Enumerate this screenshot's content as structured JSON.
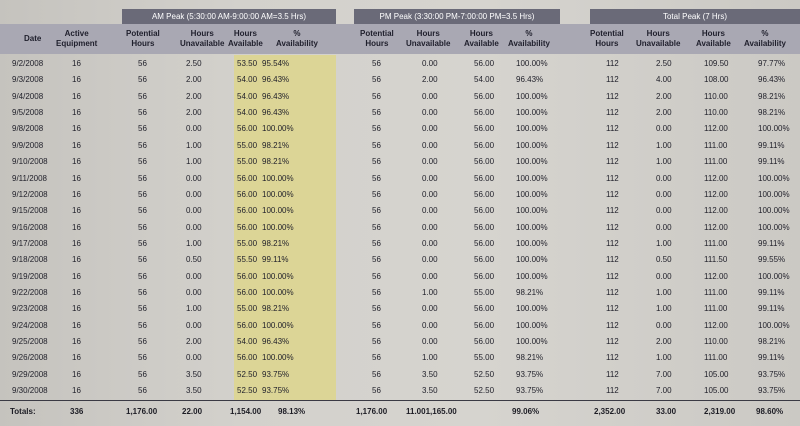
{
  "groups": {
    "am": "AM Peak (5:30:00 AM-9:00:00 AM=3.5 Hrs)",
    "pm": "PM Peak (3:30:00 PM-7:00:00 PM=3.5 Hrs)",
    "total": "Total Peak (7 Hrs)"
  },
  "headers": {
    "date": "Date",
    "active_equipment": "Active\nEquipment",
    "am_potential": "Potential\nHours",
    "am_unavailable": "Hours\nUnavailable",
    "am_available": "Hours\nAvailable",
    "am_pct": "%\nAvailability",
    "pm_potential": "Potential\nHours",
    "pm_unavailable": "Hours\nUnavailable",
    "pm_available": "Hours\nAvailable",
    "pm_pct": "%\nAvailability",
    "tot_potential": "Potential\nHours",
    "tot_unavailable": "Hours\nUnavailable",
    "tot_available": "Hours\nAvailable",
    "tot_pct": "%\nAvailability"
  },
  "rows": [
    {
      "date": "9/2/2008",
      "eq": "16",
      "am_pot": "56",
      "am_un": "2.50",
      "am_av": "53.50",
      "am_pct": "95.54%",
      "pm_pot": "56",
      "pm_un": "0.00",
      "pm_av": "56.00",
      "pm_pct": "100.00%",
      "t_pot": "112",
      "t_un": "2.50",
      "t_av": "109.50",
      "t_pct": "97.77%"
    },
    {
      "date": "9/3/2008",
      "eq": "16",
      "am_pot": "56",
      "am_un": "2.00",
      "am_av": "54.00",
      "am_pct": "96.43%",
      "pm_pot": "56",
      "pm_un": "2.00",
      "pm_av": "54.00",
      "pm_pct": "96.43%",
      "t_pot": "112",
      "t_un": "4.00",
      "t_av": "108.00",
      "t_pct": "96.43%"
    },
    {
      "date": "9/4/2008",
      "eq": "16",
      "am_pot": "56",
      "am_un": "2.00",
      "am_av": "54.00",
      "am_pct": "96.43%",
      "pm_pot": "56",
      "pm_un": "0.00",
      "pm_av": "56.00",
      "pm_pct": "100.00%",
      "t_pot": "112",
      "t_un": "2.00",
      "t_av": "110.00",
      "t_pct": "98.21%"
    },
    {
      "date": "9/5/2008",
      "eq": "16",
      "am_pot": "56",
      "am_un": "2.00",
      "am_av": "54.00",
      "am_pct": "96.43%",
      "pm_pot": "56",
      "pm_un": "0.00",
      "pm_av": "56.00",
      "pm_pct": "100.00%",
      "t_pot": "112",
      "t_un": "2.00",
      "t_av": "110.00",
      "t_pct": "98.21%"
    },
    {
      "date": "9/8/2008",
      "eq": "16",
      "am_pot": "56",
      "am_un": "0.00",
      "am_av": "56.00",
      "am_pct": "100.00%",
      "pm_pot": "56",
      "pm_un": "0.00",
      "pm_av": "56.00",
      "pm_pct": "100.00%",
      "t_pot": "112",
      "t_un": "0.00",
      "t_av": "112.00",
      "t_pct": "100.00%"
    },
    {
      "date": "9/9/2008",
      "eq": "16",
      "am_pot": "56",
      "am_un": "1.00",
      "am_av": "55.00",
      "am_pct": "98.21%",
      "pm_pot": "56",
      "pm_un": "0.00",
      "pm_av": "56.00",
      "pm_pct": "100.00%",
      "t_pot": "112",
      "t_un": "1.00",
      "t_av": "111.00",
      "t_pct": "99.11%"
    },
    {
      "date": "9/10/2008",
      "eq": "16",
      "am_pot": "56",
      "am_un": "1.00",
      "am_av": "55.00",
      "am_pct": "98.21%",
      "pm_pot": "56",
      "pm_un": "0.00",
      "pm_av": "56.00",
      "pm_pct": "100.00%",
      "t_pot": "112",
      "t_un": "1.00",
      "t_av": "111.00",
      "t_pct": "99.11%"
    },
    {
      "date": "9/11/2008",
      "eq": "16",
      "am_pot": "56",
      "am_un": "0.00",
      "am_av": "56.00",
      "am_pct": "100.00%",
      "pm_pot": "56",
      "pm_un": "0.00",
      "pm_av": "56.00",
      "pm_pct": "100.00%",
      "t_pot": "112",
      "t_un": "0.00",
      "t_av": "112.00",
      "t_pct": "100.00%"
    },
    {
      "date": "9/12/2008",
      "eq": "16",
      "am_pot": "56",
      "am_un": "0.00",
      "am_av": "56.00",
      "am_pct": "100.00%",
      "pm_pot": "56",
      "pm_un": "0.00",
      "pm_av": "56.00",
      "pm_pct": "100.00%",
      "t_pot": "112",
      "t_un": "0.00",
      "t_av": "112.00",
      "t_pct": "100.00%"
    },
    {
      "date": "9/15/2008",
      "eq": "16",
      "am_pot": "56",
      "am_un": "0.00",
      "am_av": "56.00",
      "am_pct": "100.00%",
      "pm_pot": "56",
      "pm_un": "0.00",
      "pm_av": "56.00",
      "pm_pct": "100.00%",
      "t_pot": "112",
      "t_un": "0.00",
      "t_av": "112.00",
      "t_pct": "100.00%"
    },
    {
      "date": "9/16/2008",
      "eq": "16",
      "am_pot": "56",
      "am_un": "0.00",
      "am_av": "56.00",
      "am_pct": "100.00%",
      "pm_pot": "56",
      "pm_un": "0.00",
      "pm_av": "56.00",
      "pm_pct": "100.00%",
      "t_pot": "112",
      "t_un": "0.00",
      "t_av": "112.00",
      "t_pct": "100.00%"
    },
    {
      "date": "9/17/2008",
      "eq": "16",
      "am_pot": "56",
      "am_un": "1.00",
      "am_av": "55.00",
      "am_pct": "98.21%",
      "pm_pot": "56",
      "pm_un": "0.00",
      "pm_av": "56.00",
      "pm_pct": "100.00%",
      "t_pot": "112",
      "t_un": "1.00",
      "t_av": "111.00",
      "t_pct": "99.11%"
    },
    {
      "date": "9/18/2008",
      "eq": "16",
      "am_pot": "56",
      "am_un": "0.50",
      "am_av": "55.50",
      "am_pct": "99.11%",
      "pm_pot": "56",
      "pm_un": "0.00",
      "pm_av": "56.00",
      "pm_pct": "100.00%",
      "t_pot": "112",
      "t_un": "0.50",
      "t_av": "111.50",
      "t_pct": "99.55%"
    },
    {
      "date": "9/19/2008",
      "eq": "16",
      "am_pot": "56",
      "am_un": "0.00",
      "am_av": "56.00",
      "am_pct": "100.00%",
      "pm_pot": "56",
      "pm_un": "0.00",
      "pm_av": "56.00",
      "pm_pct": "100.00%",
      "t_pot": "112",
      "t_un": "0.00",
      "t_av": "112.00",
      "t_pct": "100.00%"
    },
    {
      "date": "9/22/2008",
      "eq": "16",
      "am_pot": "56",
      "am_un": "0.00",
      "am_av": "56.00",
      "am_pct": "100.00%",
      "pm_pot": "56",
      "pm_un": "1.00",
      "pm_av": "55.00",
      "pm_pct": "98.21%",
      "t_pot": "112",
      "t_un": "1.00",
      "t_av": "111.00",
      "t_pct": "99.11%"
    },
    {
      "date": "9/23/2008",
      "eq": "16",
      "am_pot": "56",
      "am_un": "1.00",
      "am_av": "55.00",
      "am_pct": "98.21%",
      "pm_pot": "56",
      "pm_un": "0.00",
      "pm_av": "56.00",
      "pm_pct": "100.00%",
      "t_pot": "112",
      "t_un": "1.00",
      "t_av": "111.00",
      "t_pct": "99.11%"
    },
    {
      "date": "9/24/2008",
      "eq": "16",
      "am_pot": "56",
      "am_un": "0.00",
      "am_av": "56.00",
      "am_pct": "100.00%",
      "pm_pot": "56",
      "pm_un": "0.00",
      "pm_av": "56.00",
      "pm_pct": "100.00%",
      "t_pot": "112",
      "t_un": "0.00",
      "t_av": "112.00",
      "t_pct": "100.00%"
    },
    {
      "date": "9/25/2008",
      "eq": "16",
      "am_pot": "56",
      "am_un": "2.00",
      "am_av": "54.00",
      "am_pct": "96.43%",
      "pm_pot": "56",
      "pm_un": "0.00",
      "pm_av": "56.00",
      "pm_pct": "100.00%",
      "t_pot": "112",
      "t_un": "2.00",
      "t_av": "110.00",
      "t_pct": "98.21%"
    },
    {
      "date": "9/26/2008",
      "eq": "16",
      "am_pot": "56",
      "am_un": "0.00",
      "am_av": "56.00",
      "am_pct": "100.00%",
      "pm_pot": "56",
      "pm_un": "1.00",
      "pm_av": "55.00",
      "pm_pct": "98.21%",
      "t_pot": "112",
      "t_un": "1.00",
      "t_av": "111.00",
      "t_pct": "99.11%"
    },
    {
      "date": "9/29/2008",
      "eq": "16",
      "am_pot": "56",
      "am_un": "3.50",
      "am_av": "52.50",
      "am_pct": "93.75%",
      "pm_pot": "56",
      "pm_un": "3.50",
      "pm_av": "52.50",
      "pm_pct": "93.75%",
      "t_pot": "112",
      "t_un": "7.00",
      "t_av": "105.00",
      "t_pct": "93.75%"
    },
    {
      "date": "9/30/2008",
      "eq": "16",
      "am_pot": "56",
      "am_un": "3.50",
      "am_av": "52.50",
      "am_pct": "93.75%",
      "pm_pot": "56",
      "pm_un": "3.50",
      "pm_av": "52.50",
      "pm_pct": "93.75%",
      "t_pot": "112",
      "t_un": "7.00",
      "t_av": "105.00",
      "t_pct": "93.75%"
    }
  ],
  "totals": {
    "label": "Totals:",
    "eq": "336",
    "am_pot": "1,176.00",
    "am_un": "22.00",
    "am_av": "1,154.00",
    "am_pct": "98.13%",
    "pm_pot": "1,176.00",
    "pm_un_av": "11.001,165.00",
    "pm_pct": "99.06%",
    "t_pot": "2,352.00",
    "t_un": "33.00",
    "t_av": "2,319.00",
    "t_pct": "98.60%"
  },
  "colors": {
    "header_band": "#a9a8b3",
    "group_band": "#6a6a78",
    "am_highlight": "#dcd596",
    "paper": "#d3d1cc"
  }
}
